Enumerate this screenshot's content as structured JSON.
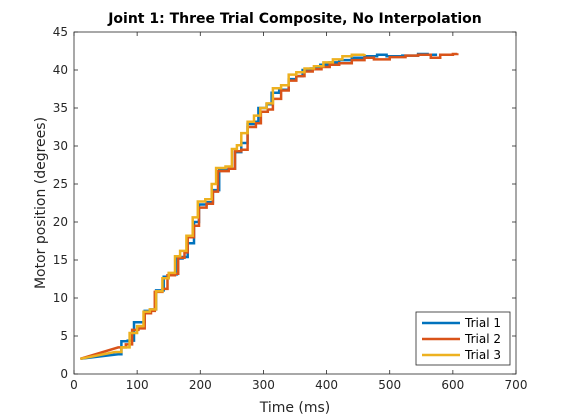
{
  "chart_data": {
    "type": "line",
    "title": "Joint 1: Three Trial Composite, No Interpolation",
    "xlabel": "Time (ms)",
    "ylabel": "Motor position (degrees)",
    "xlim": [
      0,
      700
    ],
    "ylim": [
      0,
      45
    ],
    "xticks": [
      0,
      100,
      200,
      300,
      400,
      500,
      600,
      700
    ],
    "yticks": [
      0,
      5,
      10,
      15,
      20,
      25,
      30,
      35,
      40,
      45
    ],
    "grid": false,
    "legend_position": "bottom-right",
    "step_style": "stairs",
    "series": [
      {
        "name": "Trial 1",
        "color": "#0072BD",
        "points": [
          [
            10,
            2.0
          ],
          [
            70,
            2.6
          ],
          [
            75,
            4.3
          ],
          [
            85,
            4.4
          ],
          [
            95,
            6.8
          ],
          [
            105,
            6.8
          ],
          [
            112,
            8.3
          ],
          [
            122,
            8.5
          ],
          [
            130,
            11.0
          ],
          [
            142,
            12.8
          ],
          [
            150,
            13.1
          ],
          [
            163,
            15.2
          ],
          [
            172,
            15.4
          ],
          [
            180,
            17.2
          ],
          [
            190,
            20.0
          ],
          [
            198,
            22.3
          ],
          [
            210,
            22.6
          ],
          [
            220,
            24.2
          ],
          [
            230,
            26.9
          ],
          [
            245,
            27.0
          ],
          [
            255,
            29.2
          ],
          [
            265,
            30.4
          ],
          [
            275,
            32.9
          ],
          [
            285,
            33.2
          ],
          [
            292,
            35.0
          ],
          [
            305,
            35.5
          ],
          [
            313,
            37.0
          ],
          [
            325,
            37.4
          ],
          [
            340,
            38.8
          ],
          [
            352,
            39.2
          ],
          [
            362,
            40.0
          ],
          [
            375,
            40.2
          ],
          [
            390,
            40.7
          ],
          [
            405,
            41.0
          ],
          [
            420,
            41.3
          ],
          [
            440,
            41.6
          ],
          [
            460,
            41.8
          ],
          [
            480,
            42.0
          ],
          [
            495,
            41.8
          ],
          [
            520,
            41.9
          ],
          [
            545,
            42.1
          ],
          [
            560,
            42.0
          ],
          [
            575,
            42.0
          ]
        ]
      },
      {
        "name": "Trial 2",
        "color": "#D95319",
        "points": [
          [
            10,
            2.0
          ],
          [
            70,
            3.5
          ],
          [
            82,
            3.9
          ],
          [
            92,
            5.8
          ],
          [
            102,
            6.0
          ],
          [
            112,
            8.0
          ],
          [
            122,
            8.3
          ],
          [
            128,
            10.8
          ],
          [
            140,
            11.2
          ],
          [
            148,
            13.0
          ],
          [
            160,
            13.2
          ],
          [
            165,
            15.3
          ],
          [
            175,
            16.0
          ],
          [
            180,
            18.0
          ],
          [
            190,
            19.5
          ],
          [
            198,
            21.9
          ],
          [
            210,
            22.4
          ],
          [
            220,
            24.0
          ],
          [
            228,
            26.7
          ],
          [
            245,
            27.0
          ],
          [
            255,
            29.3
          ],
          [
            265,
            29.5
          ],
          [
            275,
            32.5
          ],
          [
            288,
            33.0
          ],
          [
            296,
            34.5
          ],
          [
            307,
            34.8
          ],
          [
            315,
            36.2
          ],
          [
            328,
            37.3
          ],
          [
            340,
            38.6
          ],
          [
            352,
            39.2
          ],
          [
            365,
            39.8
          ],
          [
            378,
            40.1
          ],
          [
            392,
            40.4
          ],
          [
            405,
            40.7
          ],
          [
            420,
            40.9
          ],
          [
            440,
            41.3
          ],
          [
            460,
            41.6
          ],
          [
            475,
            41.4
          ],
          [
            500,
            41.7
          ],
          [
            525,
            41.9
          ],
          [
            545,
            42.0
          ],
          [
            565,
            41.6
          ],
          [
            580,
            42.0
          ],
          [
            600,
            42.1
          ],
          [
            607,
            42.2
          ]
        ]
      },
      {
        "name": "Trial 3",
        "color": "#EDB120",
        "points": [
          [
            10,
            2.0
          ],
          [
            65,
            2.9
          ],
          [
            75,
            3.5
          ],
          [
            88,
            5.4
          ],
          [
            100,
            6.3
          ],
          [
            110,
            8.2
          ],
          [
            120,
            8.5
          ],
          [
            130,
            10.9
          ],
          [
            140,
            12.6
          ],
          [
            150,
            13.3
          ],
          [
            160,
            15.5
          ],
          [
            168,
            16.2
          ],
          [
            178,
            18.2
          ],
          [
            188,
            20.6
          ],
          [
            196,
            22.7
          ],
          [
            208,
            23.0
          ],
          [
            218,
            25.0
          ],
          [
            225,
            27.1
          ],
          [
            240,
            27.3
          ],
          [
            250,
            29.6
          ],
          [
            258,
            30.1
          ],
          [
            265,
            31.7
          ],
          [
            275,
            33.2
          ],
          [
            285,
            34.0
          ],
          [
            295,
            35.0
          ],
          [
            305,
            35.6
          ],
          [
            315,
            37.6
          ],
          [
            328,
            38.0
          ],
          [
            340,
            39.4
          ],
          [
            352,
            39.7
          ],
          [
            365,
            40.2
          ],
          [
            380,
            40.5
          ],
          [
            395,
            41.0
          ],
          [
            410,
            41.4
          ],
          [
            425,
            41.8
          ],
          [
            440,
            42.0
          ],
          [
            460,
            42.1
          ]
        ]
      }
    ]
  }
}
